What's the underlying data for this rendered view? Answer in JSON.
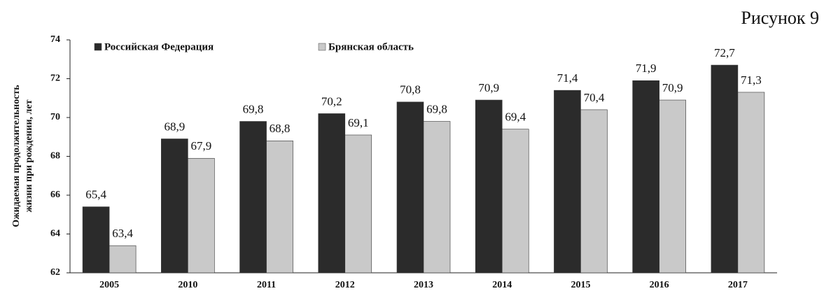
{
  "chart_data": {
    "type": "bar",
    "figure_label": "Рисунок 9",
    "ylabel": [
      "Ожидаемая продолжительность",
      "жизни при рождении, лет"
    ],
    "categories": [
      "2005",
      "2010",
      "2011",
      "2012",
      "2013",
      "2014",
      "2015",
      "2016",
      "2017"
    ],
    "series": [
      {
        "name": "Российская Федерация",
        "color": "#2b2b2b",
        "values": [
          65.4,
          68.9,
          69.8,
          70.2,
          70.8,
          70.9,
          71.4,
          71.9,
          72.7
        ],
        "value_labels": [
          "65,4",
          "68,9",
          "69,8",
          "70,2",
          "70,8",
          "70,9",
          "71,4",
          "71,9",
          "72,7"
        ]
      },
      {
        "name": "Брянская область",
        "color": "#c9c9c9",
        "values": [
          63.4,
          67.9,
          68.8,
          69.1,
          69.8,
          69.4,
          70.4,
          70.9,
          71.3
        ],
        "value_labels": [
          "63,4",
          "67,9",
          "68,8",
          "69,1",
          "69,8",
          "69,4",
          "70,4",
          "70,9",
          "71,3"
        ]
      }
    ],
    "ylim": [
      62,
      74
    ],
    "yticks": [
      62,
      64,
      66,
      68,
      70,
      72,
      74
    ],
    "grid": false,
    "legend": "top-left"
  }
}
